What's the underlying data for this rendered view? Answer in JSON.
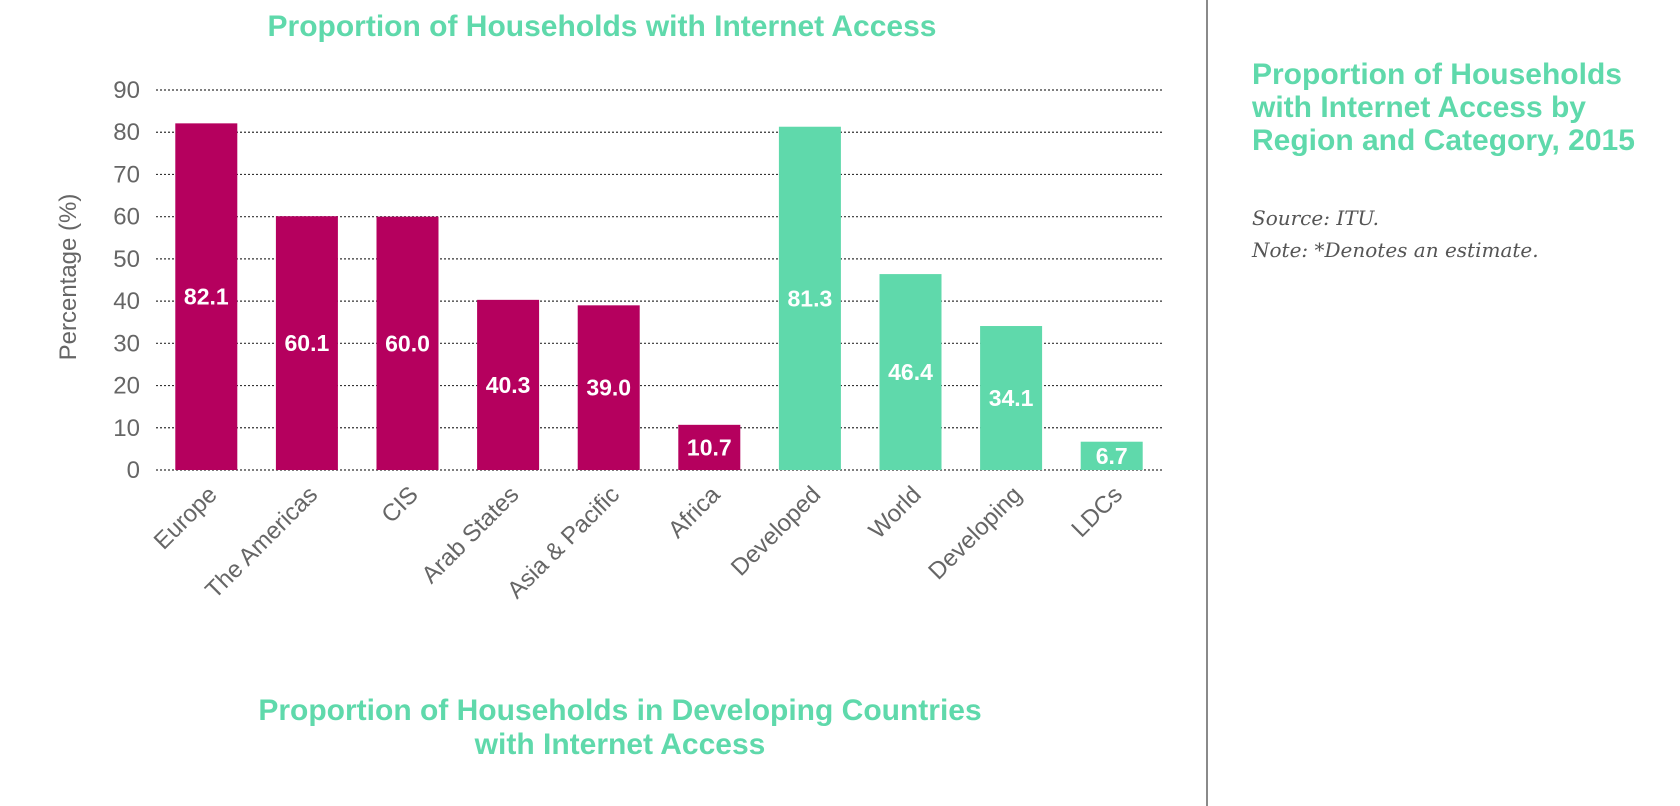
{
  "chart_title": "Proportion of Households with Internet Access",
  "section_title": {
    "line1": "Proportion of Households in Developing Countries",
    "line2": "with Internet Access"
  },
  "side_panel": {
    "title_line1": "Proportion of Households",
    "title_line2": "with Internet Access by",
    "title_line3": "Region and Category, 2015",
    "source": "Source: ITU.",
    "note": "Note: *Denotes an estimate."
  },
  "chart_data": {
    "type": "bar",
    "title": "Proportion of Households with Internet Access",
    "xlabel": "",
    "ylabel": "Percentage (%)",
    "ylim": [
      0,
      90
    ],
    "yticks": [
      0,
      10,
      20,
      30,
      40,
      50,
      60,
      70,
      80,
      90
    ],
    "grid": true,
    "categories": [
      "Europe",
      "The Americas",
      "CIS",
      "Arab States",
      "Asia & Pacific",
      "Africa",
      "Developed",
      "World",
      "Developing",
      "LDCs"
    ],
    "values": [
      82.1,
      60.1,
      60.0,
      40.3,
      39.0,
      10.7,
      81.3,
      46.4,
      34.1,
      6.7
    ],
    "data_labels": [
      "82.1",
      "60.1",
      "60.0",
      "40.3",
      "39.0",
      "10.7",
      "81.3",
      "46.4",
      "34.1",
      "6.7"
    ],
    "bar_colors": [
      "#b5005e",
      "#b5005e",
      "#b5005e",
      "#b5005e",
      "#b5005e",
      "#b5005e",
      "#5fd9ab",
      "#5fd9ab",
      "#5fd9ab",
      "#5fd9ab"
    ]
  }
}
